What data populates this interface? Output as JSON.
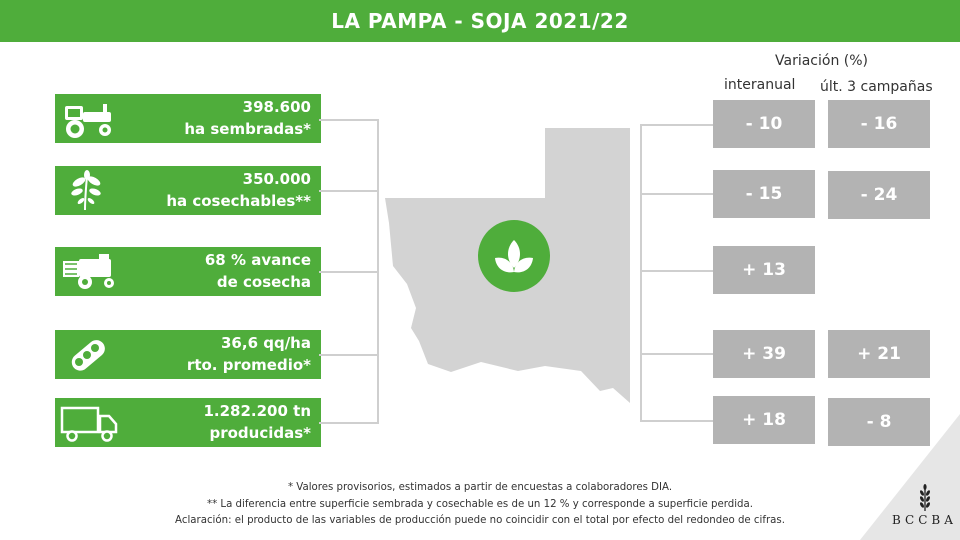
{
  "title": "LA PAMPA - SOJA 2021/22",
  "stats": [
    {
      "icon": "tractor-icon",
      "line1": "398.600",
      "line2": "ha sembradas*"
    },
    {
      "icon": "soybean-plant-icon",
      "line1": "350.000",
      "line2": "ha cosechables**"
    },
    {
      "icon": "combine-harvester-icon",
      "line1": "68 % avance",
      "line2": "de cosecha"
    },
    {
      "icon": "soybean-pod-icon",
      "line1": "36,6 qq/ha",
      "line2": "rto. promedio*"
    },
    {
      "icon": "truck-icon",
      "line1": "1.282.200 tn",
      "line2": "producidas*"
    }
  ],
  "variation": {
    "header": "Variación (%)",
    "col1": "interanual",
    "col2": "últ. 3 campañas",
    "rows": [
      {
        "interanual": "- 10",
        "ult3": "- 16"
      },
      {
        "interanual": "- 15",
        "ult3": "- 24"
      },
      {
        "interanual": "+ 13",
        "ult3": ""
      },
      {
        "interanual": "+ 39",
        "ult3": "+ 21"
      },
      {
        "interanual": "+ 18",
        "ult3": "- 8"
      }
    ]
  },
  "notes": {
    "n1": "* Valores provisorios, estimados a partir de encuestas a colaboradores DIA.",
    "n2": "** La diferencia entre superficie sembrada y cosechable es de un 12 % y corresponde a superficie perdida.",
    "n3": "Aclaración: el producto de las variables de producción puede no coincidir con el total por efecto del redondeo de cifras."
  },
  "brand": "BCCBA",
  "colors": {
    "green": "#4fad3b",
    "gray_box": "#b3b3b3",
    "map_gray": "#d3d3d3",
    "line": "#cfcfcf"
  }
}
